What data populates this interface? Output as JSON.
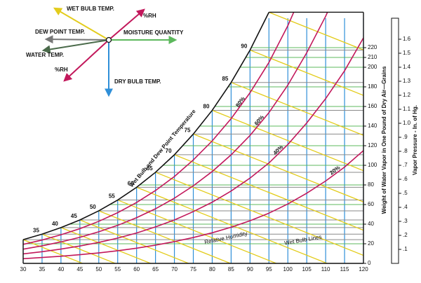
{
  "key_diagram": {
    "labels": [
      "WET BULB TEMP.",
      "%RH",
      "DEW POINT TEMP.",
      "MOISTURE QUANTITY",
      "WATER TEMP.",
      "%RH",
      "DRY BULB TEMP."
    ]
  },
  "chart_data": {
    "type": "psychrometric",
    "y_label": "Weight of Water Vapor in One Pound of Dry Air—Grains",
    "y2_label": "Vapor Pressure - In. of Hg.",
    "xlim": [
      30,
      120
    ],
    "xticks": [
      30,
      35,
      40,
      45,
      50,
      55,
      60,
      65,
      70,
      75,
      80,
      85,
      90,
      95,
      100,
      105,
      110,
      115,
      120
    ],
    "ylim": [
      0,
      250
    ],
    "yticks": [
      0,
      20,
      40,
      60,
      80,
      100,
      120,
      140,
      160,
      180,
      200,
      210,
      220
    ],
    "y2lim": [
      0,
      1.75
    ],
    "y2ticks": [
      {
        "value": 0.1,
        "label": ".1"
      },
      {
        "value": 0.2,
        "label": ".2"
      },
      {
        "value": 0.3,
        "label": ".3"
      },
      {
        "value": 0.4,
        "label": ".4"
      },
      {
        "value": 0.5,
        "label": ".5"
      },
      {
        "value": 0.6,
        "label": ".6"
      },
      {
        "value": 0.7,
        "label": ".7"
      },
      {
        "value": 0.8,
        "label": ".8"
      },
      {
        "value": 0.9,
        "label": ".9"
      },
      {
        "value": 1,
        "label": "1.0"
      },
      1.1,
      1.2,
      1.3,
      1.4,
      1.5,
      1.6
    ],
    "saturation": {
      "label": "Wet Bulb and Dew Point Temperature",
      "x": [
        30,
        35,
        40,
        45,
        50,
        55,
        60,
        65,
        70,
        75,
        80,
        85,
        90,
        95
      ],
      "values": [
        24.2,
        29.8,
        36.5,
        44.3,
        53.6,
        64.6,
        77.6,
        92.9,
        110.8,
        131.9,
        156.1,
        184.5,
        217.5,
        256.1
      ]
    },
    "rh_x": [
      30,
      35,
      40,
      45,
      50,
      55,
      60,
      65,
      70,
      75,
      80,
      85,
      90,
      95,
      100,
      105,
      110,
      115,
      120
    ],
    "rh_curves": [
      {
        "label": "20%",
        "values": [
          4.8,
          6.0,
          7.3,
          8.9,
          10.7,
          12.9,
          15.5,
          18.6,
          22.2,
          26.4,
          31.2,
          36.9,
          43.5,
          51.2,
          60.6,
          71.6,
          84,
          98.2,
          115
        ]
      },
      {
        "label": "40%",
        "values": [
          9.7,
          11.9,
          14.6,
          17.7,
          21.4,
          25.8,
          31.0,
          37.2,
          44.3,
          52.8,
          62.4,
          73.8,
          87.0,
          102.4,
          121.2,
          143.2,
          168,
          196.4,
          230
        ]
      },
      {
        "label": "60%",
        "values": [
          14.5,
          17.9,
          21.9,
          26.6,
          32.2,
          38.8,
          46.6,
          55.7,
          66.5,
          79.1,
          93.7,
          110.7,
          130.5,
          153.7,
          181.8,
          214.8,
          252,
          294.6,
          345
        ]
      },
      {
        "label": "80%",
        "values": [
          19.4,
          23.8,
          29.2,
          35.4,
          42.9,
          51.7,
          62.1,
          74.3,
          88.6,
          105.5,
          124.9,
          147.6,
          174,
          204.9,
          242.4,
          286.4,
          336,
          392.8,
          460
        ]
      }
    ],
    "rh_color": "#c2185b",
    "wet_bulb_color": "#e3cc1c",
    "dew_point_color": "#8a8a8a",
    "grid_color": "#5cb85c",
    "x_grid_color": "#2f8fd8",
    "annotations": [
      "Relative Humidity",
      "Wet Bulb Lines"
    ]
  }
}
